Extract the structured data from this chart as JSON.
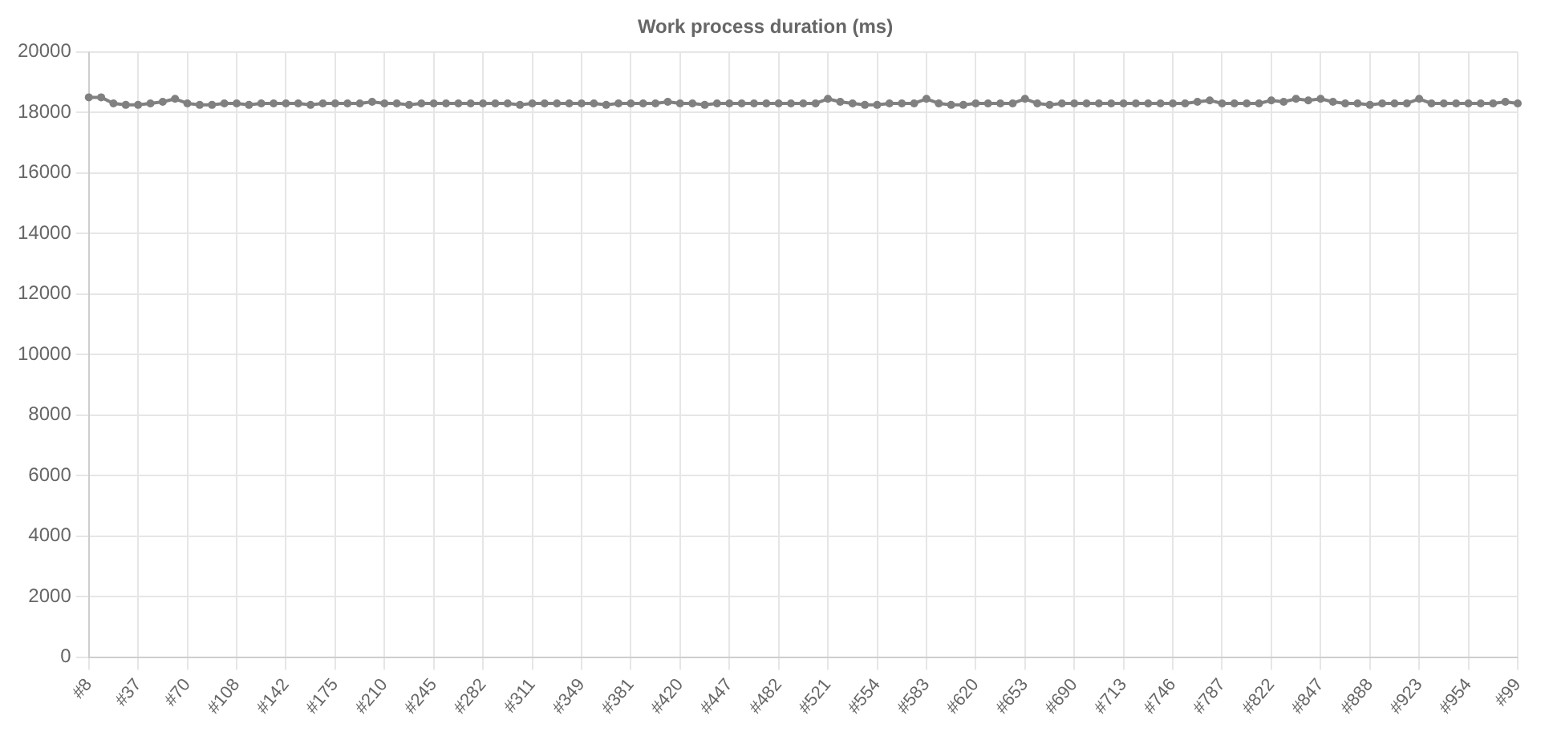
{
  "chart_data": {
    "type": "line",
    "title": "Work process duration (ms)",
    "categories": [
      "#8",
      null,
      null,
      null,
      "#37",
      null,
      null,
      null,
      "#70",
      null,
      null,
      null,
      "#108",
      null,
      null,
      null,
      "#142",
      null,
      null,
      null,
      "#175",
      null,
      null,
      null,
      "#210",
      null,
      null,
      null,
      "#245",
      null,
      null,
      null,
      "#282",
      null,
      null,
      null,
      "#311",
      null,
      null,
      null,
      "#349",
      null,
      null,
      null,
      "#381",
      null,
      null,
      null,
      "#420",
      null,
      null,
      null,
      "#447",
      null,
      null,
      null,
      "#482",
      null,
      null,
      null,
      "#521",
      null,
      null,
      null,
      "#554",
      null,
      null,
      null,
      "#583",
      null,
      null,
      null,
      "#620",
      null,
      null,
      null,
      "#653",
      null,
      null,
      null,
      "#690",
      null,
      null,
      null,
      "#713",
      null,
      null,
      null,
      "#746",
      null,
      null,
      null,
      "#787",
      null,
      null,
      null,
      "#822",
      null,
      null,
      null,
      "#847",
      null,
      null,
      null,
      "#888",
      null,
      null,
      null,
      "#923",
      null,
      null,
      null,
      "#954",
      null,
      null,
      null,
      "#99"
    ],
    "series": [
      {
        "color": "#808080",
        "values": [
          18500,
          18500,
          18300,
          18250,
          18250,
          18300,
          18350,
          18450,
          18300,
          18250,
          18250,
          18300,
          18300,
          18250,
          18300,
          18300,
          18300,
          18300,
          18250,
          18300,
          18300,
          18300,
          18300,
          18350,
          18300,
          18300,
          18250,
          18300,
          18300,
          18300,
          18300,
          18300,
          18300,
          18300,
          18300,
          18250,
          18300,
          18300,
          18300,
          18300,
          18300,
          18300,
          18250,
          18300,
          18300,
          18300,
          18300,
          18350,
          18300,
          18300,
          18250,
          18300,
          18300,
          18300,
          18300,
          18300,
          18300,
          18300,
          18300,
          18300,
          18450,
          18350,
          18300,
          18250,
          18250,
          18300,
          18300,
          18300,
          18450,
          18300,
          18250,
          18250,
          18300,
          18300,
          18300,
          18300,
          18450,
          18300,
          18250,
          18300,
          18300,
          18300,
          18300,
          18300,
          18300,
          18300,
          18300,
          18300,
          18300,
          18300,
          18350,
          18400,
          18300,
          18300,
          18300,
          18300,
          18400,
          18350,
          18450,
          18400,
          18450,
          18350,
          18300,
          18300,
          18250,
          18300,
          18300,
          18300,
          18450,
          18300,
          18300,
          18300,
          18300,
          18300,
          18300,
          18350,
          18300
        ]
      }
    ],
    "ylim": [
      0,
      20000
    ],
    "yticks": [
      0,
      2000,
      4000,
      6000,
      8000,
      10000,
      12000,
      14000,
      16000,
      18000,
      20000
    ],
    "grid": true,
    "marker": "circle",
    "legend": false
  }
}
